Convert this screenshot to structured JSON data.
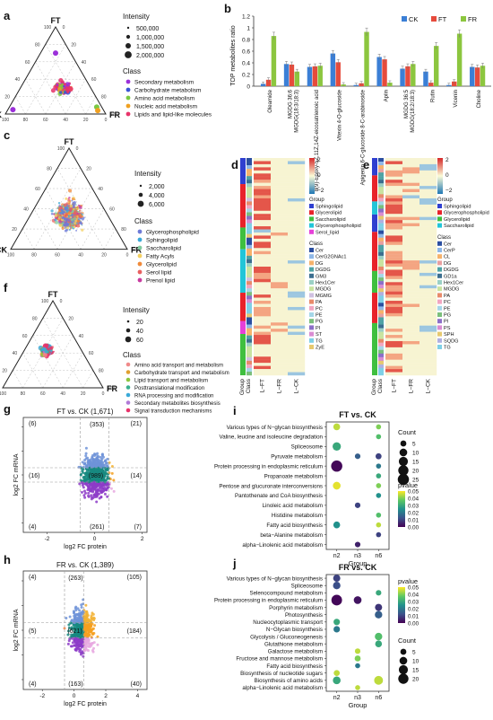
{
  "panel_letters": [
    "a",
    "b",
    "c",
    "d",
    "e",
    "f",
    "g",
    "h",
    "i",
    "j"
  ],
  "colors": {
    "ck": "#3b7fd6",
    "ft": "#e64b3c",
    "fr": "#8cc63f",
    "secondary": "#9b30d9",
    "carbohydrate": "#3a55d6",
    "amino": "#7ac943",
    "nucleic": "#f0a020",
    "lipids_met": "#e8336a",
    "glycerophospholipid": "#6e7bd8",
    "sphingolipid": "#3aa9d8",
    "saccharolipid": "#7fcaa0",
    "fatty_acyls": "#f4d060",
    "glycerolipid": "#f08a3a",
    "serol": "#e86060",
    "prenol": "#c83aa0",
    "heat_low": "#1f77b4",
    "heat_mid": "#fbfbd6",
    "heat_high": "#d62728"
  },
  "chart_data": [
    {
      "panel": "a",
      "type": "scatter",
      "subtype": "ternary",
      "vertices": [
        "FT",
        "CK",
        "FR"
      ],
      "tick_labels": [
        "0",
        "20",
        "40",
        "60",
        "80",
        "100"
      ],
      "size_legend_title": "Intensity",
      "size_legend": [
        "500,000",
        "1,000,000",
        "1,500,000",
        "2,000,000"
      ],
      "class_legend_title": "Class",
      "classes": [
        {
          "name": "Secondary metabolism",
          "color_key": "secondary"
        },
        {
          "name": "Carbohydrate metabolism",
          "color_key": "carbohydrate"
        },
        {
          "name": "Amino acid metabolism",
          "color_key": "amino"
        },
        {
          "name": "Nucleic acid metabolism",
          "color_key": "nucleic"
        },
        {
          "name": "Lipids and lipid-like molecules",
          "color_key": "lipids_met"
        }
      ]
    },
    {
      "panel": "b",
      "type": "bar",
      "ylabel": "TOP metabolites ratio",
      "ylim": [
        0,
        1.2
      ],
      "yticks": [
        "0",
        "0.2",
        "0.4",
        "0.6",
        "0.8",
        "1",
        "1.2"
      ],
      "categories": [
        "Oleamide",
        "MGDG 36:6; MGDG(18:3/18:3)",
        "8(9)-Epoxy-5Z,11Z,14Z-eicosatrienoic acid",
        "Vitexin 4-O-glucoside",
        "Apigenin 6-C-glucoside 8-C-arabinoside",
        "Apiin",
        "MGDG 36:5; MGDG(18:2/18:3)",
        "Rutin",
        "Vicenin",
        "Choline"
      ],
      "series": [
        {
          "name": "CK",
          "color_key": "ck",
          "values": [
            0.04,
            0.38,
            0.33,
            0.56,
            0.02,
            0.5,
            0.3,
            0.25,
            0.02,
            0.33
          ]
        },
        {
          "name": "FT",
          "color_key": "ft",
          "values": [
            0.11,
            0.37,
            0.34,
            0.41,
            0.05,
            0.46,
            0.34,
            0.06,
            0.08,
            0.32
          ]
        },
        {
          "name": "FR",
          "color_key": "fr",
          "values": [
            0.86,
            0.25,
            0.35,
            0.03,
            0.93,
            0.06,
            0.38,
            0.69,
            0.9,
            0.35
          ]
        }
      ],
      "legend_position": "top-right"
    },
    {
      "panel": "c",
      "type": "scatter",
      "subtype": "ternary",
      "vertices": [
        "FT",
        "CK",
        "FR"
      ],
      "tick_labels": [
        "0",
        "20",
        "40",
        "60",
        "80",
        "100"
      ],
      "size_legend_title": "Intensity",
      "size_legend": [
        "2,000",
        "4,000",
        "6,000"
      ],
      "class_legend_title": "Class",
      "classes": [
        {
          "name": "Glycerophospholipid",
          "color_key": "glycerophospholipid"
        },
        {
          "name": "Sphingolipid",
          "color_key": "sphingolipid"
        },
        {
          "name": "Saccharolipid",
          "color_key": "saccharolipid"
        },
        {
          "name": "Fatty Acyls",
          "color_key": "fatty_acyls"
        },
        {
          "name": "Glycerolipid",
          "color_key": "glycerolipid"
        },
        {
          "name": "Serol lipid",
          "color_key": "serol"
        },
        {
          "name": "Prenol lipid",
          "color_key": "prenol"
        }
      ]
    },
    {
      "panel": "d",
      "type": "heatmap",
      "columns": [
        "L−FT",
        "L−FR",
        "L−CK"
      ],
      "side_labels": [
        "Group",
        "Class"
      ],
      "scale_ticks": [
        "2",
        "0",
        "−2"
      ],
      "group_legend_title": "Group",
      "groups": [
        {
          "name": "Sphingolipid",
          "color": "#2f3fd0"
        },
        {
          "name": "Glycerolipid",
          "color": "#e8232a"
        },
        {
          "name": "Saccharolipid",
          "color": "#3fbf3f"
        },
        {
          "name": "Glycerophospholipid",
          "color": "#22c5d8"
        },
        {
          "name": "Serol_lipid",
          "color": "#e640d8"
        }
      ],
      "class_legend_title": "Class",
      "classes": [
        {
          "name": "Cer",
          "color": "#2a4ea0"
        },
        {
          "name": "CerG2GNAc1",
          "color": "#8fb8e8"
        },
        {
          "name": "DG",
          "color": "#f6b26b"
        },
        {
          "name": "DGDG",
          "color": "#4fa3a5"
        },
        {
          "name": "GM3",
          "color": "#3c6e8f"
        },
        {
          "name": "Hex1Cer",
          "color": "#9bd0c5"
        },
        {
          "name": "MGDG",
          "color": "#c9e3a0"
        },
        {
          "name": "MGMG",
          "color": "#cfc0e0"
        },
        {
          "name": "PA",
          "color": "#e88a6a"
        },
        {
          "name": "PC",
          "color": "#f1a6c1"
        },
        {
          "name": "PE",
          "color": "#a5d6e8"
        },
        {
          "name": "PG",
          "color": "#7bbf7b"
        },
        {
          "name": "PI",
          "color": "#8c6fc8"
        },
        {
          "name": "ST",
          "color": "#d98cd2"
        },
        {
          "name": "TG",
          "color": "#7fd0e6"
        },
        {
          "name": "ZyE",
          "color": "#e6c96f"
        }
      ]
    },
    {
      "panel": "e",
      "type": "heatmap",
      "columns": [
        "L−FT",
        "L−FR",
        "L−CK"
      ],
      "side_labels": [
        "Group",
        "Class"
      ],
      "scale_ticks": [
        "2",
        "0",
        "−2"
      ],
      "group_legend_title": "Group",
      "groups": [
        {
          "name": "Sphingolipid",
          "color": "#2f3fd0"
        },
        {
          "name": "Glycerophospholipid",
          "color": "#e8232a"
        },
        {
          "name": "Glycerolipid",
          "color": "#3fbf3f"
        },
        {
          "name": "Saccharolipid",
          "color": "#22c5d8"
        }
      ],
      "class_legend_title": "Class",
      "classes": [
        {
          "name": "Cer",
          "color": "#2a4ea0"
        },
        {
          "name": "CerP",
          "color": "#8fb8e8"
        },
        {
          "name": "CL",
          "color": "#f6b26b"
        },
        {
          "name": "DG",
          "color": "#e8a0a0"
        },
        {
          "name": "DGDG",
          "color": "#4fa3a5"
        },
        {
          "name": "GD1a",
          "color": "#3c6e8f"
        },
        {
          "name": "Hex1Cer",
          "color": "#9bd0c5"
        },
        {
          "name": "MGDG",
          "color": "#c9e3a0"
        },
        {
          "name": "PA",
          "color": "#e88a6a"
        },
        {
          "name": "PC",
          "color": "#f1a6c1"
        },
        {
          "name": "PE",
          "color": "#a5d6e8"
        },
        {
          "name": "PG",
          "color": "#7bbf7b"
        },
        {
          "name": "PI",
          "color": "#8c6fc8"
        },
        {
          "name": "PS",
          "color": "#d98cd2"
        },
        {
          "name": "SPH",
          "color": "#e6c96f"
        },
        {
          "name": "SQDG",
          "color": "#b0b0e0"
        },
        {
          "name": "TG",
          "color": "#7fd0e6"
        }
      ]
    },
    {
      "panel": "f",
      "type": "scatter",
      "subtype": "ternary",
      "vertices": [
        "FT",
        "CK",
        "FR"
      ],
      "tick_labels": [
        "0",
        "20",
        "40",
        "60",
        "80",
        "100"
      ],
      "size_legend_title": "Intensity",
      "size_legend": [
        "20",
        "40",
        "60"
      ],
      "class_legend_title": "Class",
      "classes": [
        {
          "name": "Amino acid transport and metabolism",
          "color": "#f08a8a"
        },
        {
          "name": "Carbohydrate transport and metabolism",
          "color": "#e0a030"
        },
        {
          "name": "Lipid transport and metabolism",
          "color": "#8cc63f"
        },
        {
          "name": "Posttranslational modification",
          "color": "#3aaf8f"
        },
        {
          "name": "RNA processing and modification",
          "color": "#3aa9d8"
        },
        {
          "name": "Secondary metabolites biosynthesis",
          "color": "#b07ad8"
        },
        {
          "name": "Signal transduction mechanisms",
          "color": "#e8336a"
        }
      ]
    },
    {
      "panel": "g",
      "type": "scatter",
      "title": "FT vs. CK (1,671)",
      "xlabel": "log2 FC protein",
      "ylabel": "log2 FC mRNA",
      "xticks": [
        "-2",
        "0",
        "2"
      ],
      "yticks": [
        "-10",
        "-5",
        "0",
        "5",
        "10"
      ],
      "quadrant_counts": {
        "top_left": "(6)",
        "top_mid": "(353)",
        "top_right": "(21)",
        "mid_left": "(16)",
        "center": "(989)",
        "mid_right": "(14)",
        "bottom_left": "(4)",
        "bottom_mid": "(261)",
        "bottom_right": "(7)"
      }
    },
    {
      "panel": "h",
      "type": "scatter",
      "title": "FR vs. CK (1,389)",
      "xlabel": "log2 FC protein",
      "ylabel": "log2 FC mRNA",
      "xticks": [
        "-2",
        "0",
        "2",
        "4"
      ],
      "yticks": [
        "-10",
        "-5",
        "0",
        "5",
        "10"
      ],
      "quadrant_counts": {
        "top_left": "(4)",
        "top_mid": "(263)",
        "top_right": "(105)",
        "mid_left": "(5)",
        "center": "(621)",
        "mid_right": "(184)",
        "bottom_left": "(4)",
        "bottom_mid": "(163)",
        "bottom_right": "(40)"
      }
    },
    {
      "panel": "i",
      "type": "scatter",
      "subtype": "dot",
      "title": "FT vs. CK",
      "xlabel": "Group",
      "x": [
        "n2",
        "n3",
        "n6"
      ],
      "categories": [
        "Various types of N−glycan biosynthesis",
        "Valine, leucine and isoleucine degradation",
        "Spliceosome",
        "Pyruvate metabolism",
        "Protein processing in endoplasmic reticulum",
        "Propanoate metabolism",
        "Pentose and glucuronate interconversions",
        "Pantothenate and CoA biosynthesis",
        "Linoleic acid metabolism",
        "Histidine metabolism",
        "Fatty acid biosynthesis",
        "beta−Alanine metabolism",
        "alpha−Linolenic acid metabolism"
      ],
      "points": [
        {
          "pathway": 0,
          "group": "n2",
          "count": 7,
          "pvalue": 0.045
        },
        {
          "pathway": 0,
          "group": "n6",
          "count": 3,
          "pvalue": 0.04
        },
        {
          "pathway": 1,
          "group": "n6",
          "count": 3,
          "pvalue": 0.035
        },
        {
          "pathway": 2,
          "group": "n2",
          "count": 12,
          "pvalue": 0.03
        },
        {
          "pathway": 3,
          "group": "n3",
          "count": 4,
          "pvalue": 0.015
        },
        {
          "pathway": 3,
          "group": "n6",
          "count": 5,
          "pvalue": 0.01
        },
        {
          "pathway": 4,
          "group": "n2",
          "count": 25,
          "pvalue": 0.001
        },
        {
          "pathway": 4,
          "group": "n6",
          "count": 3,
          "pvalue": 0.02
        },
        {
          "pathway": 5,
          "group": "n6",
          "count": 3,
          "pvalue": 0.03
        },
        {
          "pathway": 6,
          "group": "n2",
          "count": 10,
          "pvalue": 0.048
        },
        {
          "pathway": 6,
          "group": "n6",
          "count": 3,
          "pvalue": 0.04
        },
        {
          "pathway": 7,
          "group": "n6",
          "count": 3,
          "pvalue": 0.025
        },
        {
          "pathway": 8,
          "group": "n3",
          "count": 4,
          "pvalue": 0.01
        },
        {
          "pathway": 9,
          "group": "n6",
          "count": 3,
          "pvalue": 0.035
        },
        {
          "pathway": 10,
          "group": "n2",
          "count": 7,
          "pvalue": 0.025
        },
        {
          "pathway": 10,
          "group": "n6",
          "count": 3,
          "pvalue": 0.045
        },
        {
          "pathway": 11,
          "group": "n6",
          "count": 3,
          "pvalue": 0.01
        },
        {
          "pathway": 12,
          "group": "n3",
          "count": 4,
          "pvalue": 0.005
        }
      ],
      "size_legend_title": "Count",
      "size_legend": [
        5,
        10,
        15,
        20,
        25
      ],
      "color_legend_title": "pvalue",
      "color_legend_ticks": [
        "0.05",
        "0.04",
        "0.03",
        "0.02",
        "0.01",
        "0.00"
      ]
    },
    {
      "panel": "j",
      "type": "scatter",
      "subtype": "dot",
      "title": "FR vs. CK",
      "xlabel": "Group",
      "x": [
        "n2",
        "n3",
        "n6"
      ],
      "categories": [
        "Various types of N−glycan biosynthesis",
        "Spliceosome",
        "Selenocompound metabolism",
        "Protein processing in endoplasmic reticulum",
        "Porphyrin metabolism",
        "Photosynthesis",
        "Nucleocytoplasmic transport",
        "N−Glycan biosynthesis",
        "Glycolysis / Gluconeogenesis",
        "Glutathione metabolism",
        "Galactose metabolism",
        "Fructose and mannose metabolism",
        "Fatty acid biosynthesis",
        "Biosynthesis of nucleotide sugars",
        "Biosynthesis of amino acids",
        "alpha−Linolenic acid metabolism"
      ],
      "points": [
        {
          "pathway": 0,
          "group": "n2",
          "count": 8,
          "pvalue": 0.01
        },
        {
          "pathway": 1,
          "group": "n2",
          "count": 9,
          "pvalue": 0.012
        },
        {
          "pathway": 2,
          "group": "n6",
          "count": 4,
          "pvalue": 0.03
        },
        {
          "pathway": 3,
          "group": "n2",
          "count": 22,
          "pvalue": 0.001
        },
        {
          "pathway": 3,
          "group": "n3",
          "count": 10,
          "pvalue": 0.003
        },
        {
          "pathway": 4,
          "group": "n6",
          "count": 8,
          "pvalue": 0.008
        },
        {
          "pathway": 5,
          "group": "n6",
          "count": 9,
          "pvalue": 0.015
        },
        {
          "pathway": 6,
          "group": "n2",
          "count": 6,
          "pvalue": 0.03
        },
        {
          "pathway": 7,
          "group": "n2",
          "count": 6,
          "pvalue": 0.02
        },
        {
          "pathway": 8,
          "group": "n6",
          "count": 9,
          "pvalue": 0.035
        },
        {
          "pathway": 9,
          "group": "n6",
          "count": 7,
          "pvalue": 0.03
        },
        {
          "pathway": 10,
          "group": "n3",
          "count": 4,
          "pvalue": 0.045
        },
        {
          "pathway": 11,
          "group": "n3",
          "count": 5,
          "pvalue": 0.04
        },
        {
          "pathway": 12,
          "group": "n3",
          "count": 3,
          "pvalue": 0.02
        },
        {
          "pathway": 13,
          "group": "n2",
          "count": 5,
          "pvalue": 0.045
        },
        {
          "pathway": 14,
          "group": "n2",
          "count": 10,
          "pvalue": 0.03
        },
        {
          "pathway": 14,
          "group": "n6",
          "count": 14,
          "pvalue": 0.045
        },
        {
          "pathway": 15,
          "group": "n3",
          "count": 3,
          "pvalue": 0.045
        }
      ],
      "size_legend_title": "Count",
      "size_legend": [
        5,
        10,
        15,
        20
      ],
      "color_legend_title": "pvalue",
      "color_legend_ticks": [
        "0.05",
        "0.04",
        "0.03",
        "0.02",
        "0.01",
        "0.00"
      ]
    }
  ]
}
